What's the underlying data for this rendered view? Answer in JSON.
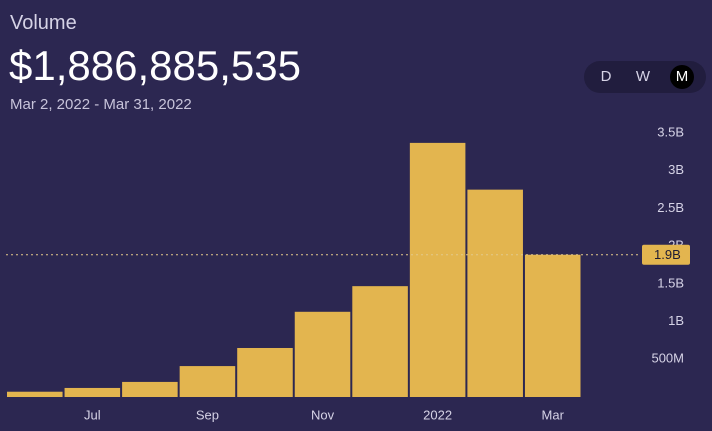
{
  "header": {
    "title": "Volume",
    "headline": "$1,886,885,535",
    "date_range": "Mar 2, 2022 - Mar 31, 2022"
  },
  "interval_options": [
    "D",
    "W",
    "M"
  ],
  "chart_data": {
    "type": "bar",
    "categories": [
      null,
      "Jul",
      null,
      "Sep",
      null,
      "Nov",
      null,
      "2022",
      null,
      "Mar"
    ],
    "values": [
      70000000,
      120000000,
      200000000,
      410000000,
      650000000,
      1130000000,
      1470000000,
      3370000000,
      2750000000,
      1886885535
    ],
    "color": "#e3b54f",
    "ylim": [
      0,
      3700000000
    ],
    "yticks": [
      {
        "value": 500000000,
        "label": "500M"
      },
      {
        "value": 1000000000,
        "label": "1B"
      },
      {
        "value": 1500000000,
        "label": "1.5B"
      },
      {
        "value": 2000000000,
        "label": "2B"
      },
      {
        "value": 2500000000,
        "label": "2.5B"
      },
      {
        "value": 3000000000,
        "label": "3B"
      },
      {
        "value": 3500000000,
        "label": "3.5B"
      }
    ],
    "crosshair": {
      "value": 1886885535,
      "label": "1.9B"
    }
  }
}
